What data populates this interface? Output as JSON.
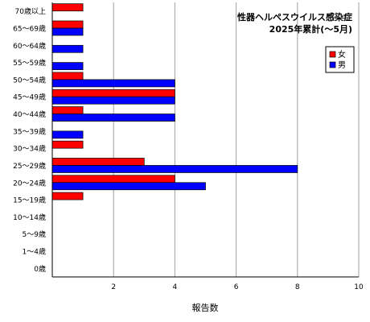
{
  "chart_data": {
    "type": "bar",
    "orientation": "horizontal",
    "title": [
      "性器ヘルペスウイルス感染症",
      "2025年累計(～5月)"
    ],
    "xlabel": "報告数",
    "ylabel": "",
    "xlim": [
      0,
      10
    ],
    "xticks": [
      "2",
      "4",
      "6",
      "8",
      "10"
    ],
    "grid": "vertical",
    "legend_position": "top-right",
    "categories": [
      "70歳以上",
      "65～69歳",
      "60～64歳",
      "55～59歳",
      "50～54歳",
      "45～49歳",
      "40～44歳",
      "35～39歳",
      "30～34歳",
      "25～29歳",
      "20～24歳",
      "15～19歳",
      "10～14歳",
      "5～9歳",
      "1～4歳",
      "0歳"
    ],
    "series": [
      {
        "name": "女",
        "color": "#ff0000",
        "values": [
          1,
          1,
          0,
          0,
          1,
          4,
          1,
          0,
          1,
          3,
          4,
          1,
          0,
          0,
          0,
          0
        ]
      },
      {
        "name": "男",
        "color": "#0000ff",
        "values": [
          0,
          1,
          1,
          1,
          4,
          4,
          4,
          1,
          0,
          8,
          5,
          0,
          0,
          0,
          0,
          0
        ]
      }
    ]
  }
}
